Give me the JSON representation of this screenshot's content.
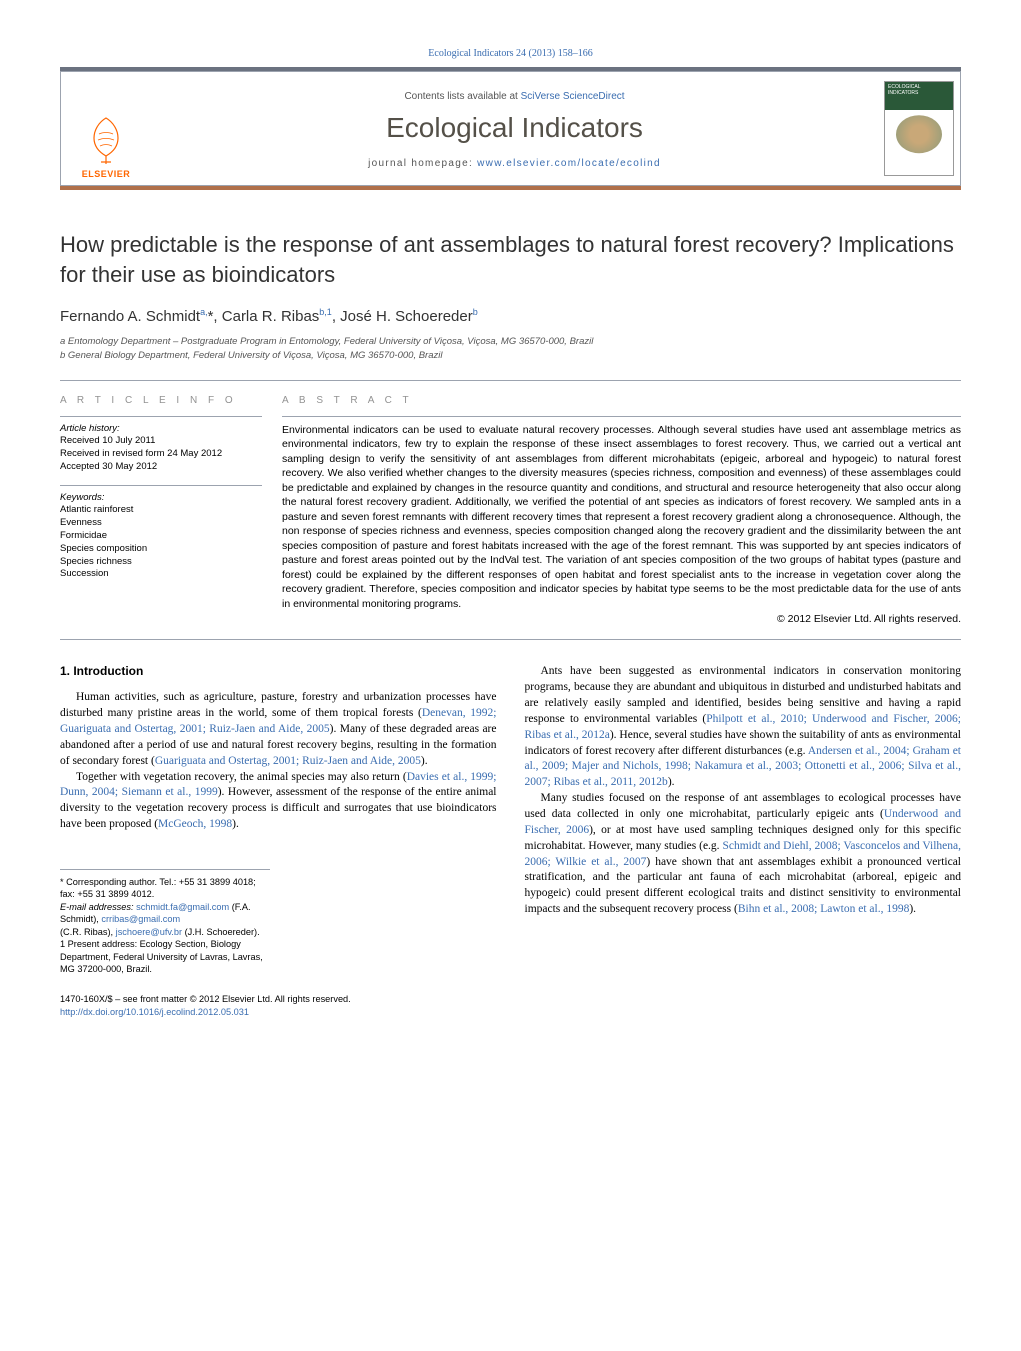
{
  "header": {
    "citation": "Ecological Indicators 24 (2013) 158–166",
    "contents_prefix": "Contents lists available at ",
    "contents_link": "SciVerse ScienceDirect",
    "journal_title": "Ecological Indicators",
    "homepage_prefix": "journal homepage: ",
    "homepage_link": "www.elsevier.com/locate/ecolind",
    "publisher": "ELSEVIER",
    "cover_label": "ECOLOGICAL INDICATORS"
  },
  "title": "How predictable is the response of ant assemblages to natural forest recovery? Implications for their use as bioindicators",
  "authors_html": "Fernando A. Schmidt<sup>a,</sup>*, Carla R. Ribas<sup>b,1</sup>, José H. Schoereder<sup>b</sup>",
  "affiliations": [
    "a Entomology Department – Postgraduate Program in Entomology, Federal University of Viçosa, Viçosa, MG 36570-000, Brazil",
    "b General Biology Department, Federal University of Viçosa, Viçosa, MG 36570-000, Brazil"
  ],
  "info": {
    "heading": "A R T I C L E   I N F O",
    "history_label": "Article history:",
    "history": [
      "Received 10 July 2011",
      "Received in revised form 24 May 2012",
      "Accepted 30 May 2012"
    ],
    "keywords_label": "Keywords:",
    "keywords": [
      "Atlantic rainforest",
      "Evenness",
      "Formicidae",
      "Species composition",
      "Species richness",
      "Succession"
    ]
  },
  "abstract": {
    "heading": "A B S T R A C T",
    "text": "Environmental indicators can be used to evaluate natural recovery processes. Although several studies have used ant assemblage metrics as environmental indicators, few try to explain the response of these insect assemblages to forest recovery. Thus, we carried out a vertical ant sampling design to verify the sensitivity of ant assemblages from different microhabitats (epigeic, arboreal and hypogeic) to natural forest recovery. We also verified whether changes to the diversity measures (species richness, composition and evenness) of these assemblages could be predictable and explained by changes in the resource quantity and conditions, and structural and resource heterogeneity that also occur along the natural forest recovery gradient. Additionally, we verified the potential of ant species as indicators of forest recovery. We sampled ants in a pasture and seven forest remnants with different recovery times that represent a forest recovery gradient along a chronosequence. Although, the non response of species richness and evenness, species composition changed along the recovery gradient and the dissimilarity between the ant species composition of pasture and forest habitats increased with the age of the forest remnant. This was supported by ant species indicators of pasture and forest areas pointed out by the IndVal test. The variation of ant species composition of the two groups of habitat types (pasture and forest) could be explained by the different responses of open habitat and forest specialist ants to the increase in vegetation cover along the recovery gradient. Therefore, species composition and indicator species by habitat type seems to be the most predictable data for the use of ants in environmental monitoring programs.",
    "copyright": "© 2012 Elsevier Ltd. All rights reserved."
  },
  "body": {
    "section_heading": "1.  Introduction",
    "left_paras": [
      "Human activities, such as agriculture, pasture, forestry and urbanization processes have disturbed many pristine areas in the world, some of them tropical forests (<a>Denevan, 1992; Guariguata and Ostertag, 2001; Ruiz-Jaen and Aide, 2005</a>). Many of these degraded areas are abandoned after a period of use and natural forest recovery begins, resulting in the formation of secondary forest (<a>Guariguata and Ostertag, 2001; Ruiz-Jaen and Aide, 2005</a>).",
      "Together with vegetation recovery, the animal species may also return (<a>Davies et al., 1999; Dunn, 2004; Siemann et al., 1999</a>). However, assessment of the response of the entire animal diversity to the vegetation recovery process is difficult and surrogates that use bioindicators have been proposed (<a>McGeoch, 1998</a>)."
    ],
    "right_paras": [
      "Ants have been suggested as environmental indicators in conservation monitoring programs, because they are abundant and ubiquitous in disturbed and undisturbed habitats and are relatively easily sampled and identified, besides being sensitive and having a rapid response to environmental variables (<a>Philpott et al., 2010; Underwood and Fischer, 2006; Ribas et al., 2012a</a>). Hence, several studies have shown the suitability of ants as environmental indicators of forest recovery after different disturbances (e.g. <a>Andersen et al., 2004; Graham et al., 2009; Majer and Nichols, 1998; Nakamura et al., 2003; Ottonetti et al., 2006; Silva et al., 2007; Ribas et al., 2011, 2012b</a>).",
      "Many studies focused on the response of ant assemblages to ecological processes have used data collected in only one microhabitat, particularly epigeic ants (<a>Underwood and Fischer, 2006</a>), or at most have used sampling techniques designed only for this specific microhabitat. However, many studies (e.g. <a>Schmidt and Diehl, 2008; Vasconcelos and Vilhena, 2006; Wilkie et al., 2007</a>) have shown that ant assemblages exhibit a pronounced vertical stratification, and the particular ant fauna of each microhabitat (arboreal, epigeic and hypogeic) could present different ecological traits and distinct sensitivity to environmental impacts and the subsequent recovery process (<a>Bihn et al., 2008; Lawton et al., 1998</a>)."
    ]
  },
  "footnotes": {
    "corr": "* Corresponding author. Tel.: +55 31 3899 4018; fax: +55 31 3899 4012.",
    "emails_label": "E-mail addresses: ",
    "emails": "schmidt.fa@gmail.com (F.A. Schmidt), crribas@gmail.com",
    "emails2": "(C.R. Ribas), jschoere@ufv.br (J.H. Schoereder).",
    "present": "1 Present address: Ecology Section, Biology Department, Federal University of Lavras, Lavras, MG 37200-000, Brazil."
  },
  "bottom": {
    "line1": "1470-160X/$ – see front matter © 2012 Elsevier Ltd. All rights reserved.",
    "doi": "http://dx.doi.org/10.1016/j.ecolind.2012.05.031"
  },
  "colors": {
    "link": "#3a6db0",
    "rule_top": "#6b7280",
    "rule_bottom": "#b0704a",
    "elsevier_orange": "#ff6600"
  }
}
